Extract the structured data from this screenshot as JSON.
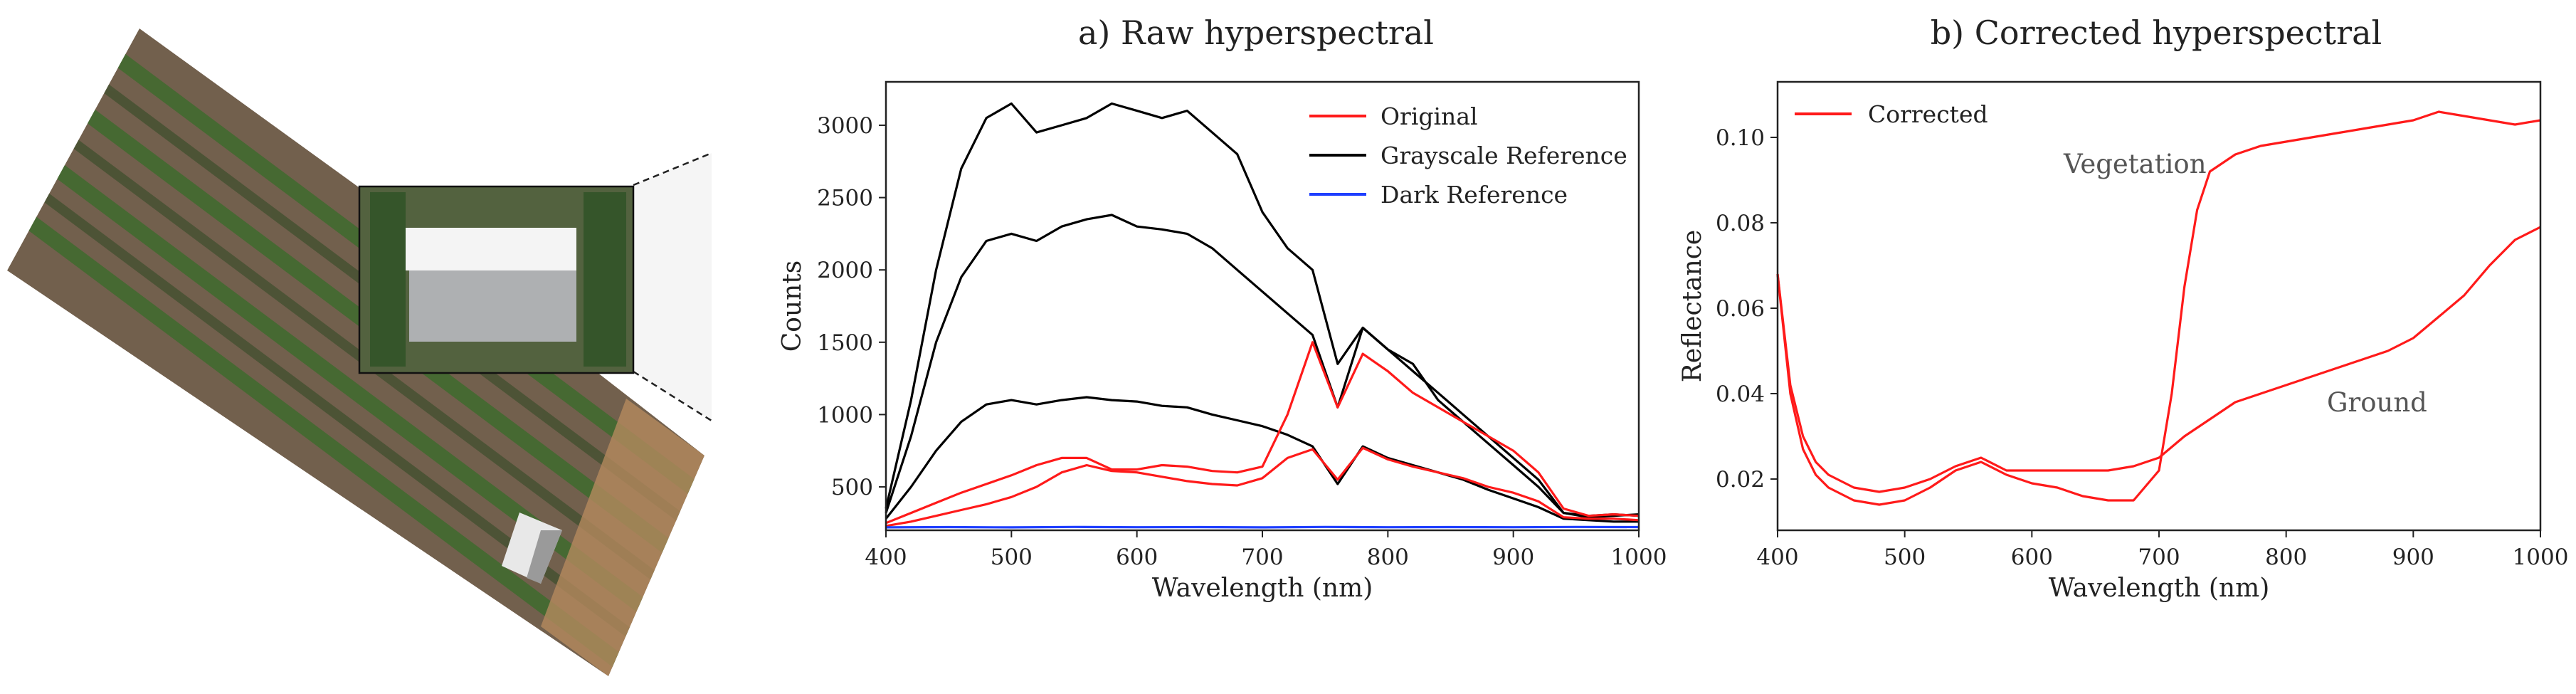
{
  "colors": {
    "original": "#ff1a1a",
    "grayscale": "#000000",
    "dark": "#1f3fff",
    "corrected": "#ff1a1a"
  },
  "aerial_image": {
    "description_icon": "aerial-field-photo-icon"
  },
  "chart_data": [
    {
      "type": "line",
      "title": "a) Raw hyperspectral",
      "xlabel": "Wavelength (nm)",
      "ylabel": "Counts",
      "xlim": [
        400,
        1000
      ],
      "ylim": [
        200,
        3300
      ],
      "xticks": [
        400,
        500,
        600,
        700,
        800,
        900,
        1000
      ],
      "yticks": [
        500,
        1000,
        1500,
        2000,
        2500,
        3000
      ],
      "legend_position": "top-right",
      "legend": [
        "Original",
        "Grayscale Reference",
        "Dark Reference"
      ],
      "series": [
        {
          "name": "Grayscale Reference",
          "group": "grayscale",
          "x": [
            400,
            420,
            440,
            460,
            480,
            500,
            520,
            540,
            560,
            580,
            600,
            620,
            640,
            660,
            680,
            700,
            720,
            740,
            760,
            780,
            800,
            820,
            840,
            860,
            880,
            900,
            920,
            940,
            960,
            980,
            1000
          ],
          "y": [
            350,
            1100,
            2000,
            2700,
            3050,
            3150,
            2950,
            3000,
            3050,
            3150,
            3100,
            3050,
            3100,
            2950,
            2800,
            2400,
            2150,
            2000,
            1350,
            1600,
            1450,
            1350,
            1100,
            950,
            800,
            650,
            500,
            320,
            290,
            300,
            310
          ]
        },
        {
          "name": "Grayscale Reference",
          "group": "grayscale",
          "x": [
            400,
            420,
            440,
            460,
            480,
            500,
            520,
            540,
            560,
            580,
            600,
            620,
            640,
            660,
            680,
            700,
            720,
            740,
            760,
            780,
            800,
            820,
            840,
            860,
            880,
            900,
            920,
            940,
            960,
            980,
            1000
          ],
          "y": [
            320,
            850,
            1500,
            1950,
            2200,
            2250,
            2200,
            2300,
            2350,
            2380,
            2300,
            2280,
            2250,
            2150,
            2000,
            1850,
            1700,
            1550,
            1050,
            1600,
            1450,
            1300,
            1150,
            1000,
            850,
            700,
            550,
            320,
            300,
            310,
            300
          ]
        },
        {
          "name": "Grayscale Reference",
          "group": "grayscale",
          "x": [
            400,
            420,
            440,
            460,
            480,
            500,
            520,
            540,
            560,
            580,
            600,
            620,
            640,
            660,
            680,
            700,
            720,
            740,
            760,
            780,
            800,
            820,
            840,
            860,
            880,
            900,
            920,
            940,
            960,
            980,
            1000
          ],
          "y": [
            280,
            500,
            750,
            950,
            1070,
            1100,
            1070,
            1100,
            1120,
            1100,
            1090,
            1060,
            1050,
            1000,
            960,
            920,
            860,
            780,
            520,
            780,
            700,
            650,
            600,
            550,
            480,
            420,
            360,
            280,
            270,
            260,
            260
          ]
        },
        {
          "name": "Original",
          "group": "original",
          "x": [
            400,
            420,
            440,
            460,
            480,
            500,
            520,
            540,
            560,
            580,
            600,
            620,
            640,
            660,
            680,
            700,
            720,
            740,
            760,
            780,
            800,
            820,
            840,
            860,
            880,
            900,
            920,
            940,
            960,
            980,
            1000
          ],
          "y": [
            250,
            320,
            390,
            460,
            520,
            580,
            650,
            700,
            700,
            620,
            620,
            650,
            640,
            610,
            600,
            640,
            1000,
            1500,
            1050,
            1420,
            1300,
            1150,
            1050,
            950,
            850,
            750,
            600,
            350,
            300,
            310,
            300
          ]
        },
        {
          "name": "Original",
          "group": "original",
          "x": [
            400,
            420,
            440,
            460,
            480,
            500,
            520,
            540,
            560,
            580,
            600,
            620,
            640,
            660,
            680,
            700,
            720,
            740,
            760,
            780,
            800,
            820,
            840,
            860,
            880,
            900,
            920,
            940,
            960,
            980,
            1000
          ],
          "y": [
            230,
            260,
            300,
            340,
            380,
            430,
            500,
            600,
            650,
            610,
            600,
            570,
            540,
            520,
            510,
            560,
            700,
            760,
            550,
            770,
            690,
            640,
            600,
            560,
            500,
            460,
            400,
            290,
            280,
            280,
            270
          ]
        },
        {
          "name": "Dark Reference",
          "group": "dark",
          "x": [
            400,
            450,
            500,
            550,
            600,
            650,
            700,
            750,
            800,
            850,
            900,
            950,
            1000
          ],
          "y": [
            220,
            222,
            220,
            223,
            221,
            222,
            220,
            223,
            221,
            222,
            221,
            223,
            222
          ]
        }
      ]
    },
    {
      "type": "line",
      "title": "b) Corrected hyperspectral",
      "xlabel": "Wavelength (nm)",
      "ylabel": "Reflectance",
      "xlim": [
        400,
        1000
      ],
      "ylim": [
        0.008,
        0.113
      ],
      "xticks": [
        400,
        500,
        600,
        700,
        800,
        900,
        1000
      ],
      "yticks": [
        0.02,
        0.04,
        0.06,
        0.08,
        0.1
      ],
      "legend_position": "top-left",
      "legend": [
        "Corrected"
      ],
      "annotations": [
        "Vegetation",
        "Ground"
      ],
      "series": [
        {
          "name": "Corrected",
          "group": "vegetation",
          "x": [
            400,
            410,
            420,
            430,
            440,
            460,
            480,
            500,
            520,
            540,
            560,
            580,
            600,
            620,
            640,
            660,
            680,
            700,
            710,
            720,
            730,
            740,
            760,
            780,
            800,
            820,
            840,
            860,
            880,
            900,
            920,
            940,
            960,
            980,
            1000
          ],
          "y": [
            0.068,
            0.04,
            0.027,
            0.021,
            0.018,
            0.015,
            0.014,
            0.015,
            0.018,
            0.022,
            0.024,
            0.021,
            0.019,
            0.018,
            0.016,
            0.015,
            0.015,
            0.022,
            0.04,
            0.065,
            0.083,
            0.092,
            0.096,
            0.098,
            0.099,
            0.1,
            0.101,
            0.102,
            0.103,
            0.104,
            0.106,
            0.105,
            0.104,
            0.103,
            0.104
          ]
        },
        {
          "name": "Corrected",
          "group": "ground",
          "x": [
            400,
            410,
            420,
            430,
            440,
            460,
            480,
            500,
            520,
            540,
            560,
            580,
            600,
            620,
            640,
            660,
            680,
            700,
            720,
            740,
            760,
            780,
            800,
            820,
            840,
            860,
            880,
            900,
            920,
            940,
            960,
            980,
            1000
          ],
          "y": [
            0.068,
            0.042,
            0.03,
            0.024,
            0.021,
            0.018,
            0.017,
            0.018,
            0.02,
            0.023,
            0.025,
            0.022,
            0.022,
            0.022,
            0.022,
            0.022,
            0.023,
            0.025,
            0.03,
            0.034,
            0.038,
            0.04,
            0.042,
            0.044,
            0.046,
            0.048,
            0.05,
            0.053,
            0.058,
            0.063,
            0.07,
            0.076,
            0.079
          ]
        }
      ]
    }
  ]
}
